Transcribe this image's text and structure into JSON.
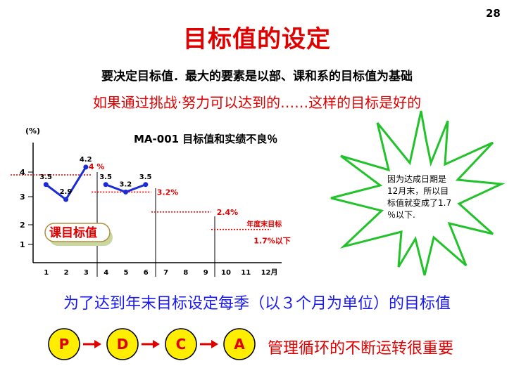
{
  "page_number": "28",
  "title": "目标值的设定",
  "subtitle_1": "要决定目标值．最大的要素是以部、课和系的目标值为基础",
  "subtitle_2": "如果通过挑战·努力可以达到的……这样的目标是好的",
  "bottom_line": "为了达到年末目标设定每季（以３个月为单位）的目标值",
  "pdca": {
    "steps": [
      "P",
      "D",
      "C",
      "A"
    ],
    "caption": "管理循环的不断运转很重要",
    "circle_color": "#ffee00",
    "letter_color": "#e00000",
    "arrow_color": "#e00000"
  },
  "starburst_note": [
    "因为达成日期是",
    "12月末，所以目",
    "标值就变成了1.7",
    "％以下."
  ],
  "callout_label": "课目标值",
  "chart_data": {
    "type": "line",
    "title": "MA-001  目标值和实绩不良％",
    "ylabel": "(%)",
    "yticks": [
      "4",
      "3",
      "2",
      "1"
    ],
    "x_ticks": [
      "1",
      "2",
      "3",
      "4",
      "5",
      "6",
      "7",
      "8",
      "9",
      "10",
      "11",
      "12月"
    ],
    "ylim": [
      0,
      5
    ],
    "series": [
      {
        "x": [
          1,
          2,
          3
        ],
        "values": [
          3.5,
          2.9,
          4.2
        ],
        "labels": [
          "3.5",
          "2.9",
          "4.2"
        ]
      },
      {
        "x": [
          4,
          5,
          6
        ],
        "values": [
          3.5,
          3.2,
          3.5
        ],
        "labels": [
          "3.5",
          "3.2",
          "3.5"
        ]
      }
    ],
    "targets": [
      {
        "label": "4 %",
        "value": 4.0,
        "from": 1,
        "to": 3
      },
      {
        "label": "3.2%",
        "value": 3.2,
        "from": 4,
        "to": 6
      },
      {
        "label": "2.4%",
        "value": 2.4,
        "from": 7,
        "to": 9
      },
      {
        "label": "1.7%以下",
        "value": 1.7,
        "from": 10,
        "to": 12,
        "extra": "年度末目标"
      }
    ],
    "line_color": "#1a2cd6",
    "target_color": "#e00000"
  }
}
